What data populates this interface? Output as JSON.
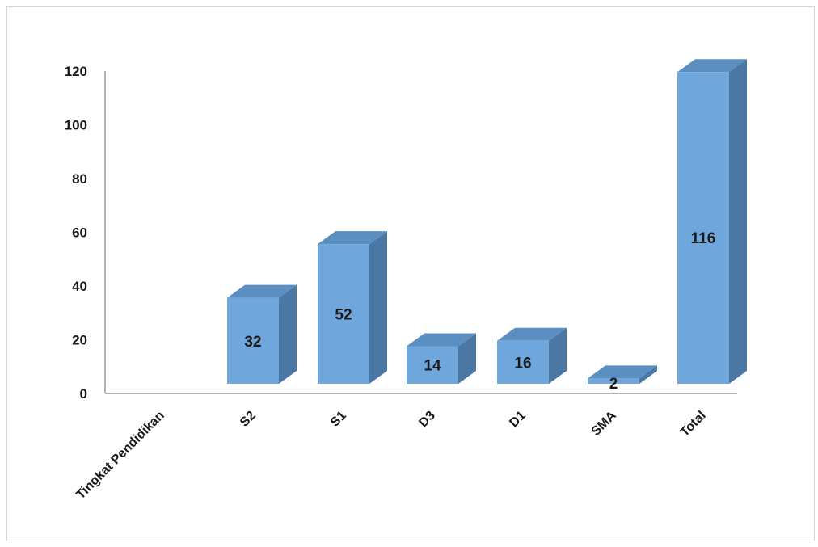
{
  "chart_data": {
    "type": "bar",
    "categories": [
      "Tingkat Pendidikan",
      "S2",
      "S1",
      "D3",
      "D1",
      "SMA",
      "Total"
    ],
    "values": [
      null,
      32,
      52,
      14,
      16,
      2,
      116
    ],
    "data_labels": [
      "",
      "32",
      "52",
      "14",
      "16",
      "2",
      "116"
    ],
    "ylim": [
      0,
      120
    ],
    "yticks": [
      0,
      20,
      40,
      60,
      80,
      100,
      120
    ],
    "grid": false,
    "legend": "none",
    "style": "3d-column",
    "colors": {
      "bar_front": "#6fa6dc",
      "bar_top": "#5b8fc2",
      "bar_side": "#4a77a3",
      "axis": "#9a9a9a",
      "text": "#1a1a1a"
    }
  }
}
